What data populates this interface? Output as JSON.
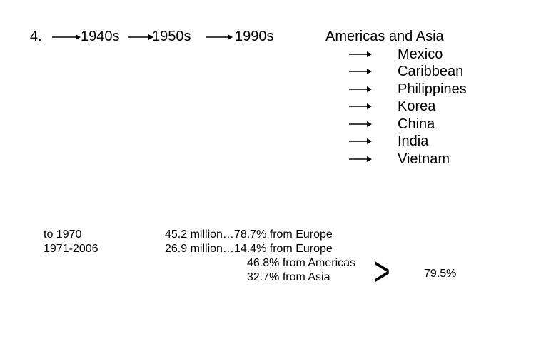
{
  "timeline": {
    "number": "4.",
    "decades": [
      "1940s",
      "1950s",
      "1990s"
    ]
  },
  "regions": {
    "header": "Americas and Asia",
    "countries": [
      "Mexico",
      "Caribbean",
      "Philippines",
      "Korea",
      "China",
      "India",
      "Vietnam"
    ]
  },
  "stats": {
    "periods": [
      "to 1970",
      "1971-2006"
    ],
    "line1": "45.2 million…78.7% from Europe",
    "line2": "26.9 million…14.4% from Europe",
    "line3": "46.8% from Americas",
    "line4": "32.7% from Asia",
    "comparison_symbol": ">",
    "combined": "79.5%"
  }
}
